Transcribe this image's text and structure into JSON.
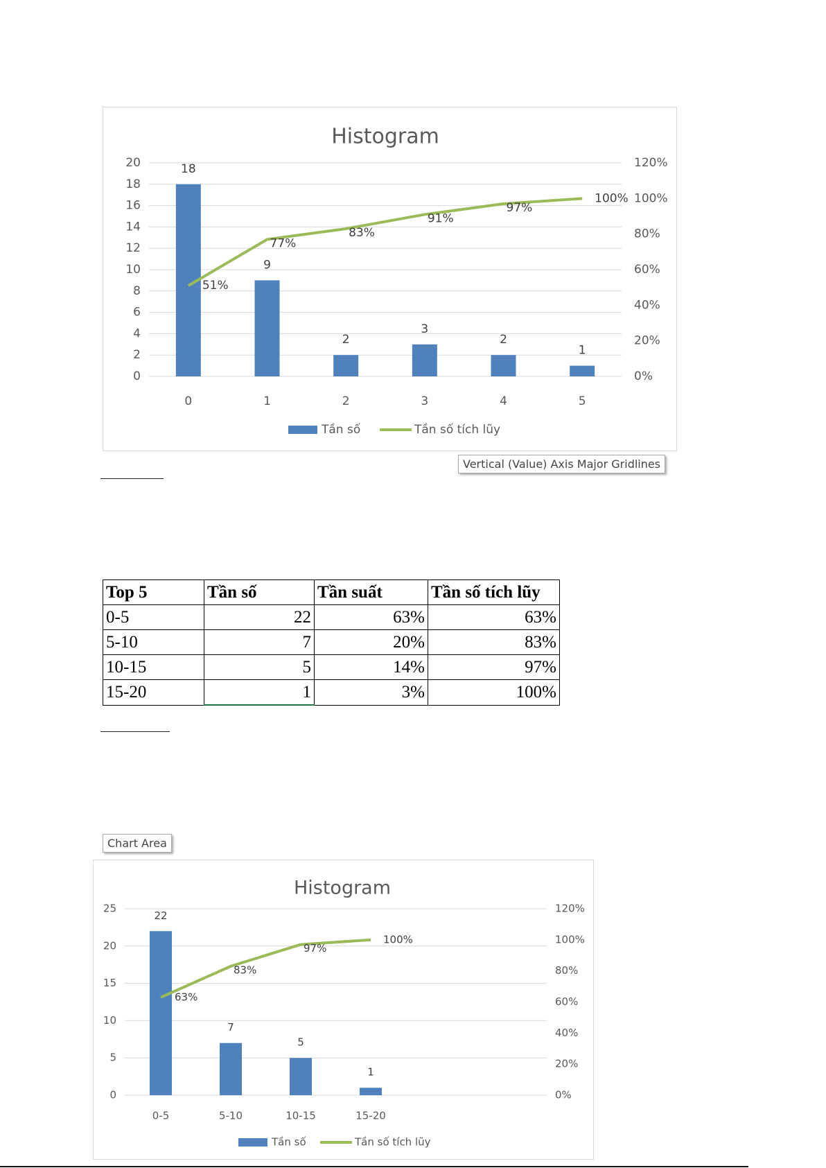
{
  "chart_data": [
    {
      "type": "bar",
      "title": "Histogram",
      "categories": [
        "0",
        "1",
        "2",
        "3",
        "4",
        "5"
      ],
      "series": [
        {
          "name": "Tần số",
          "type": "bar",
          "axis": "left",
          "color": "#4f81bd",
          "values": [
            18,
            9,
            2,
            3,
            2,
            1
          ],
          "labels": [
            "18",
            "9",
            "2",
            "3",
            "2",
            "1"
          ]
        },
        {
          "name": "Tần số tích lũy",
          "type": "line",
          "axis": "right",
          "color": "#9bbb59",
          "values": [
            0.51,
            0.77,
            0.83,
            0.91,
            0.97,
            1.0
          ],
          "labels": [
            "51%",
            "77%",
            "83%",
            "91%",
            "97%",
            "100%"
          ]
        }
      ],
      "ylim": [
        0,
        20
      ],
      "yticks": [
        "0",
        "2",
        "4",
        "6",
        "8",
        "10",
        "12",
        "14",
        "16",
        "18",
        "20"
      ],
      "y2lim": [
        0,
        1.2
      ],
      "y2ticks": [
        "0%",
        "20%",
        "40%",
        "60%",
        "80%",
        "100%",
        "120%"
      ],
      "grid": true,
      "legend": "bottom",
      "tooltip": "Vertical (Value) Axis Major Gridlines"
    },
    {
      "type": "bar",
      "title": "Histogram",
      "categories": [
        "0-5",
        "5-10",
        "10-15",
        "15-20"
      ],
      "series": [
        {
          "name": "Tần số",
          "type": "bar",
          "axis": "left",
          "color": "#4f81bd",
          "values": [
            22,
            7,
            5,
            1
          ],
          "labels": [
            "22",
            "7",
            "5",
            "1"
          ]
        },
        {
          "name": "Tần số tích lũy",
          "type": "line",
          "axis": "right",
          "color": "#9bbb59",
          "values": [
            0.63,
            0.83,
            0.97,
            1.0
          ],
          "labels": [
            "63%",
            "83%",
            "97%",
            "100%"
          ]
        }
      ],
      "ylim": [
        0,
        25
      ],
      "yticks": [
        "0",
        "5",
        "10",
        "15",
        "20",
        "25"
      ],
      "y2lim": [
        0,
        1.2
      ],
      "y2ticks": [
        "0%",
        "20%",
        "40%",
        "60%",
        "80%",
        "100%",
        "120%"
      ],
      "grid": true,
      "legend": "bottom",
      "tooltip": "Chart Area"
    }
  ],
  "table": {
    "headers": [
      "Top 5",
      "Tần số",
      "Tần suất",
      "Tần số tích lũy"
    ],
    "rows": [
      [
        "0-5",
        "22",
        "63%",
        "63%"
      ],
      [
        "5-10",
        "7",
        "20%",
        "83%"
      ],
      [
        "10-15",
        "5",
        "14%",
        "97%"
      ],
      [
        "15-20",
        "1",
        "3%",
        "100%"
      ]
    ]
  }
}
